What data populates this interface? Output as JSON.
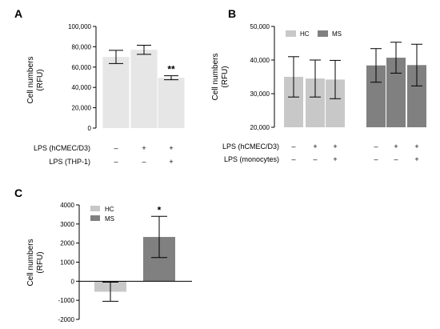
{
  "colors": {
    "hc": "#e6e6e6",
    "ms": "#808080",
    "hc_legend": "#c8c8c8",
    "axis": "#000000"
  },
  "chart_data": [
    {
      "panel": "A",
      "type": "bar",
      "ylabel": "Cell numbers\n(RFU)",
      "ylim": [
        0,
        100000
      ],
      "yticks": [
        "0",
        "20,000",
        "40,000",
        "60,000",
        "80,000",
        "100,000"
      ],
      "ytick_values": [
        0,
        20000,
        40000,
        60000,
        80000,
        100000
      ],
      "condition_rows": [
        {
          "label": "LPS (hCMEC/D3)",
          "marks": [
            "–",
            "+",
            "+"
          ]
        },
        {
          "label": "LPS (THP-1)",
          "marks": [
            "–",
            "–",
            "+"
          ]
        }
      ],
      "series": [
        {
          "values": [
            70000,
            77000,
            49500
          ],
          "errors": [
            6500,
            4500,
            2000
          ],
          "annotations": [
            "",
            "",
            "**"
          ]
        }
      ],
      "grid": false
    },
    {
      "panel": "B",
      "type": "bar",
      "ylabel": "Cell numbers\n(RFU)",
      "ylim": [
        20000,
        50000
      ],
      "yticks": [
        "20,000",
        "30,000",
        "40,000",
        "50,000"
      ],
      "ytick_values": [
        20000,
        30000,
        40000,
        50000
      ],
      "legend": [
        "HC",
        "MS"
      ],
      "legend_position": "top-left",
      "condition_rows": [
        {
          "label": "LPS (hCMEC/D3)",
          "marks": [
            "–",
            "+",
            "+",
            "–",
            "+",
            "+"
          ]
        },
        {
          "label": "LPS (monocytes)",
          "marks": [
            "–",
            "–",
            "+",
            "–",
            "–",
            "+"
          ]
        }
      ],
      "series": [
        {
          "name": "HC",
          "values": [
            35000,
            34500,
            34200
          ],
          "errors": [
            6000,
            5500,
            5700
          ]
        },
        {
          "name": "MS",
          "values": [
            38400,
            40700,
            38500
          ],
          "errors": [
            5000,
            4600,
            6200
          ]
        }
      ],
      "grid": false
    },
    {
      "panel": "C",
      "type": "bar",
      "ylabel": "Cell numbers\n(RFU)",
      "ylim": [
        -2000,
        4000
      ],
      "yticks": [
        "-2000",
        "-1000",
        "0",
        "1000",
        "2000",
        "3000",
        "4000"
      ],
      "ytick_values": [
        -2000,
        -1000,
        0,
        1000,
        2000,
        3000,
        4000
      ],
      "legend": [
        "HC",
        "MS"
      ],
      "legend_position": "top-left",
      "series": [
        {
          "name": "HC",
          "values": [
            -550
          ],
          "errors": [
            500
          ]
        },
        {
          "name": "MS",
          "values": [
            2320
          ],
          "errors": [
            1080
          ],
          "annotations": [
            "*"
          ]
        }
      ],
      "grid": false
    }
  ],
  "panel_labels": [
    "A",
    "B",
    "C"
  ]
}
